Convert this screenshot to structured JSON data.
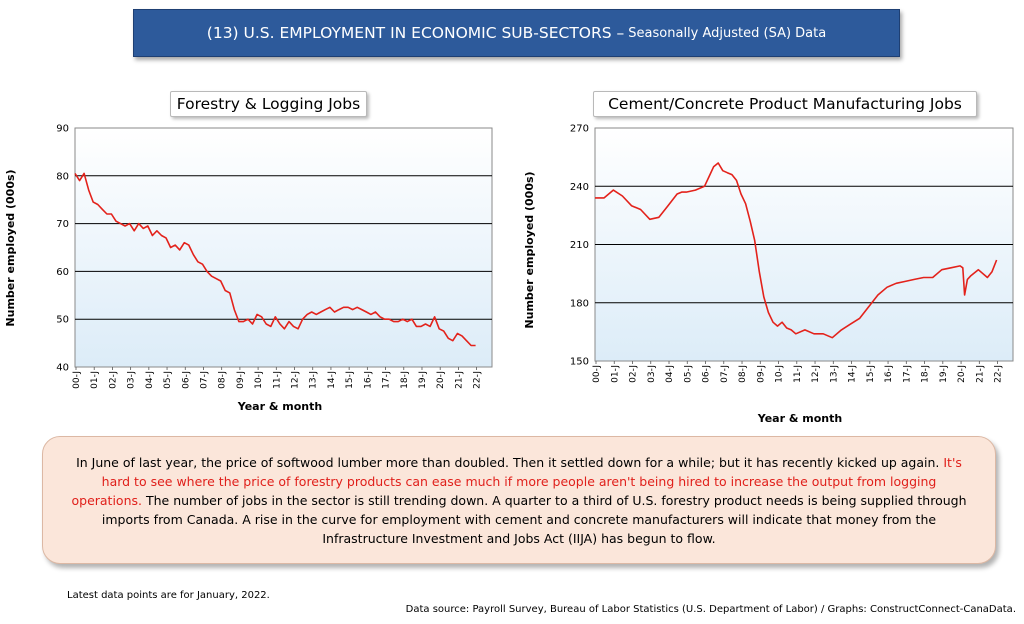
{
  "header": {
    "title_main": "(13) U.S. EMPLOYMENT IN ECONOMIC SUB-SECTORS –",
    "title_sub": "Seasonally Adjusted (SA) Data"
  },
  "chart_data": [
    {
      "type": "line",
      "title": "Forestry & Logging Jobs",
      "xlabel": "Year & month",
      "ylabel": "Number employed (000s)",
      "ylim": [
        40,
        90
      ],
      "yticks": [
        "40",
        "50",
        "60",
        "70",
        "80",
        "90"
      ],
      "gridlines": [
        50,
        60,
        70,
        80
      ],
      "xticks": [
        "00-J",
        "01-J",
        "02-J",
        "03-J",
        "04-J",
        "05-J",
        "06-J",
        "07-J",
        "08-J",
        "09-J",
        "10-J",
        "11-J",
        "12-J",
        "13-J",
        "14-J",
        "15-J",
        "16-J",
        "17-J",
        "18-J",
        "19-J",
        "20-J",
        "21-J",
        "22-J"
      ],
      "line_color": "#e3221b",
      "series": [
        {
          "x": [
            2000.0,
            2000.25,
            2000.5,
            2000.75,
            2001.0,
            2001.25,
            2001.5,
            2001.75,
            2002.0,
            2002.25,
            2002.5,
            2002.75,
            2003.0,
            2003.25,
            2003.5,
            2003.75,
            2004.0,
            2004.25,
            2004.5,
            2004.75,
            2005.0,
            2005.25,
            2005.5,
            2005.75,
            2006.0,
            2006.25,
            2006.5,
            2006.75,
            2007.0,
            2007.25,
            2007.5,
            2007.75,
            2008.0,
            2008.25,
            2008.5,
            2008.75,
            2009.0,
            2009.25,
            2009.5,
            2009.75,
            2010.0,
            2010.25,
            2010.5,
            2010.75,
            2011.0,
            2011.25,
            2011.5,
            2011.75,
            2012.0,
            2012.25,
            2012.5,
            2012.75,
            2013.0,
            2013.25,
            2013.5,
            2013.75,
            2014.0,
            2014.25,
            2014.5,
            2014.75,
            2015.0,
            2015.25,
            2015.5,
            2015.75,
            2016.0,
            2016.25,
            2016.5,
            2016.75,
            2017.0,
            2017.25,
            2017.5,
            2017.75,
            2018.0,
            2018.25,
            2018.5,
            2018.75,
            2019.0,
            2019.25,
            2019.5,
            2019.75,
            2020.0,
            2020.25,
            2020.5,
            2020.75,
            2021.0,
            2021.25,
            2021.5,
            2021.75,
            2022.0
          ],
          "values": [
            80.5,
            79.0,
            80.5,
            77.0,
            74.5,
            74.0,
            73.0,
            72.0,
            72.0,
            70.5,
            70.0,
            69.5,
            70.0,
            68.5,
            70.0,
            69.0,
            69.5,
            67.5,
            68.5,
            67.5,
            67.0,
            65.0,
            65.5,
            64.5,
            66.0,
            65.5,
            63.5,
            62.0,
            61.5,
            60.0,
            59.0,
            58.5,
            58.0,
            56.0,
            55.5,
            52.0,
            49.5,
            49.5,
            50.0,
            49.0,
            51.0,
            50.5,
            49.0,
            48.5,
            50.5,
            49.0,
            48.0,
            49.5,
            48.5,
            48.0,
            50.0,
            51.0,
            51.5,
            51.0,
            51.5,
            52.0,
            52.5,
            51.5,
            52.0,
            52.5,
            52.5,
            52.0,
            52.5,
            52.0,
            51.5,
            51.0,
            51.5,
            50.5,
            50.0,
            50.0,
            49.5,
            49.5,
            50.0,
            49.5,
            50.0,
            48.5,
            48.5,
            49.0,
            48.5,
            50.5,
            48.0,
            47.5,
            46.0,
            45.5,
            47.0,
            46.5,
            45.5,
            44.5,
            44.5
          ]
        }
      ]
    },
    {
      "type": "line",
      "title": "Cement/Concrete Product Manufacturing Jobs",
      "xlabel": "Year & month",
      "ylabel": "Number employed (000s)",
      "ylim": [
        150,
        270
      ],
      "yticks": [
        "150",
        "180",
        "210",
        "240",
        "270"
      ],
      "gridlines": [
        180,
        210,
        240
      ],
      "xticks": [
        "00-J",
        "01-J",
        "02-J",
        "03-J",
        "04-J",
        "05-J",
        "06-J",
        "07-J",
        "08-J",
        "09-J",
        "10-J",
        "11-J",
        "12-J",
        "13-J",
        "14-J",
        "15-J",
        "16-J",
        "17-J",
        "18-J",
        "19-J",
        "20-J",
        "21-J",
        "22-J"
      ],
      "line_color": "#e3221b",
      "series": [
        {
          "x": [
            2000.0,
            2000.5,
            2001.0,
            2001.5,
            2002.0,
            2002.5,
            2003.0,
            2003.5,
            2004.0,
            2004.5,
            2004.75,
            2005.0,
            2005.5,
            2006.0,
            2006.25,
            2006.5,
            2006.75,
            2007.0,
            2007.25,
            2007.5,
            2007.75,
            2008.0,
            2008.25,
            2008.5,
            2008.75,
            2009.0,
            2009.25,
            2009.5,
            2009.75,
            2010.0,
            2010.25,
            2010.5,
            2010.75,
            2011.0,
            2011.5,
            2012.0,
            2012.5,
            2013.0,
            2013.5,
            2014.0,
            2014.5,
            2015.0,
            2015.5,
            2016.0,
            2016.5,
            2017.0,
            2017.5,
            2018.0,
            2018.5,
            2019.0,
            2019.5,
            2020.0,
            2020.15,
            2020.25,
            2020.4,
            2020.6,
            2021.0,
            2021.5,
            2021.75,
            2022.0
          ],
          "values": [
            234,
            234,
            238,
            235,
            230,
            228,
            223,
            224,
            230,
            236,
            237,
            237,
            238,
            240,
            245,
            250,
            252,
            248,
            247,
            246,
            243,
            236,
            231,
            222,
            212,
            196,
            183,
            175,
            170,
            168,
            170,
            167,
            166,
            164,
            166,
            164,
            164,
            162,
            166,
            169,
            172,
            178,
            184,
            188,
            190,
            191,
            192,
            193,
            193,
            197,
            198,
            199,
            198,
            184,
            192,
            194,
            197,
            193,
            196,
            202
          ]
        }
      ]
    }
  ],
  "note": {
    "text_before": "In June of last year, the price of softwood lumber more than doubled. Then it settled down for a while; but it has recently kicked up again. ",
    "text_red": "It's hard to see where the price of forestry products can ease much if more people aren't being hired to increase the output from logging operations.",
    "text_after": " The number of jobs in the sector is still trending down. A quarter to a third of U.S. forestry product needs is being supplied through imports from Canada. A rise in the curve for employment with cement and concrete manufacturers will indicate that money from the Infrastructure Investment and Jobs Act (IIJA) has begun to flow.",
    "red_color": "#e0201b"
  },
  "footer": {
    "latest": "Latest data points are for January, 2022.",
    "source": "Data source: Payroll Survey, Bureau of Labor Statistics (U.S. Department of Labor) / Graphs: ConstructConnect-CanaData."
  }
}
